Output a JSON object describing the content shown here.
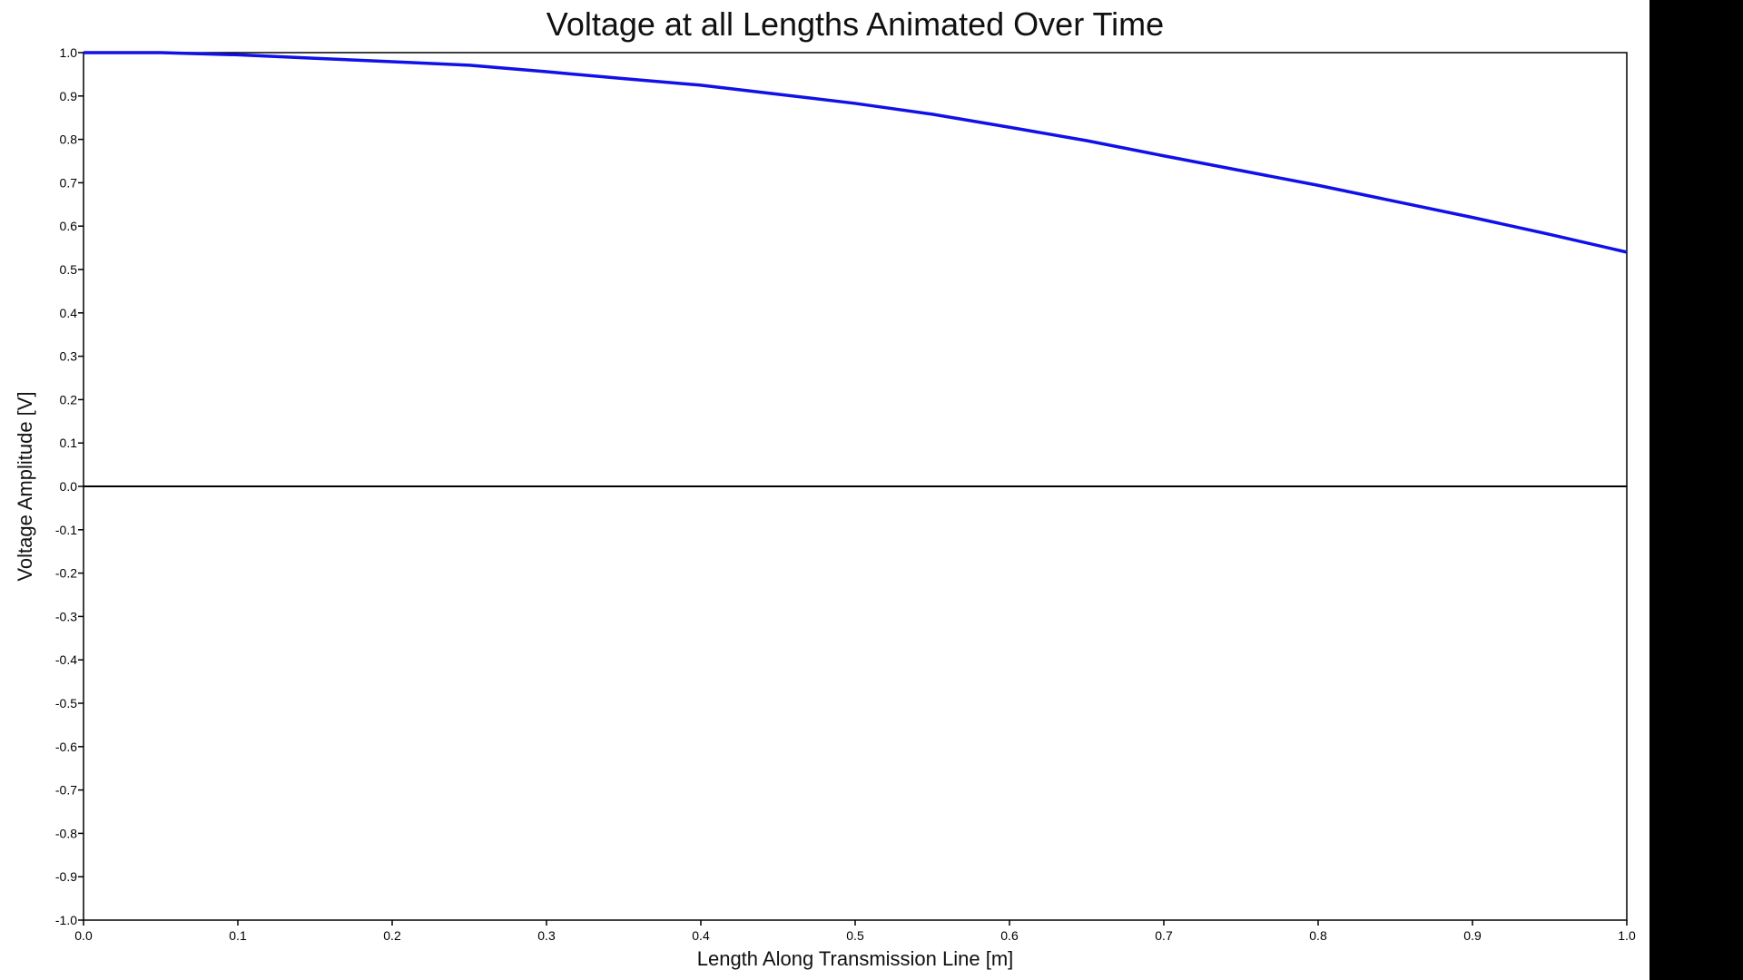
{
  "chart_data": {
    "type": "line",
    "title": "Voltage at all Lengths Animated Over Time",
    "xlabel": "Length Along Transmission Line [m]",
    "ylabel": "Voltage Amplitude [V]",
    "xlim": [
      0.0,
      1.0
    ],
    "ylim": [
      -1.0,
      1.0
    ],
    "x_ticks": [
      "0.0",
      "0.1",
      "0.2",
      "0.3",
      "0.4",
      "0.5",
      "0.6",
      "0.7",
      "0.8",
      "0.9",
      "1.0"
    ],
    "y_ticks": [
      "1.0",
      "0.9",
      "0.8",
      "0.7",
      "0.6",
      "0.5",
      "0.4",
      "0.3",
      "0.2",
      "0.1",
      "0.0",
      "-0.1",
      "-0.2",
      "-0.3",
      "-0.4",
      "-0.5",
      "-0.6",
      "-0.7",
      "-0.8",
      "-0.9",
      "-1.0"
    ],
    "grid": false,
    "zero_line": true,
    "series": [
      {
        "color": "#1010e8",
        "x": [
          0.0,
          0.05,
          0.1,
          0.15,
          0.2,
          0.25,
          0.3,
          0.35,
          0.4,
          0.45,
          0.5,
          0.55,
          0.6,
          0.65,
          0.7,
          0.75,
          0.8,
          0.85,
          0.9,
          0.95,
          1.0
        ],
        "y": [
          1.0,
          1.0,
          0.995,
          0.987,
          0.979,
          0.971,
          0.956,
          0.94,
          0.925,
          0.904,
          0.883,
          0.858,
          0.828,
          0.797,
          0.762,
          0.728,
          0.694,
          0.657,
          0.62,
          0.581,
          0.54
        ]
      }
    ]
  },
  "colors": {
    "background": "#ffffff",
    "axis": "#000000",
    "zero_line": "#000000"
  }
}
